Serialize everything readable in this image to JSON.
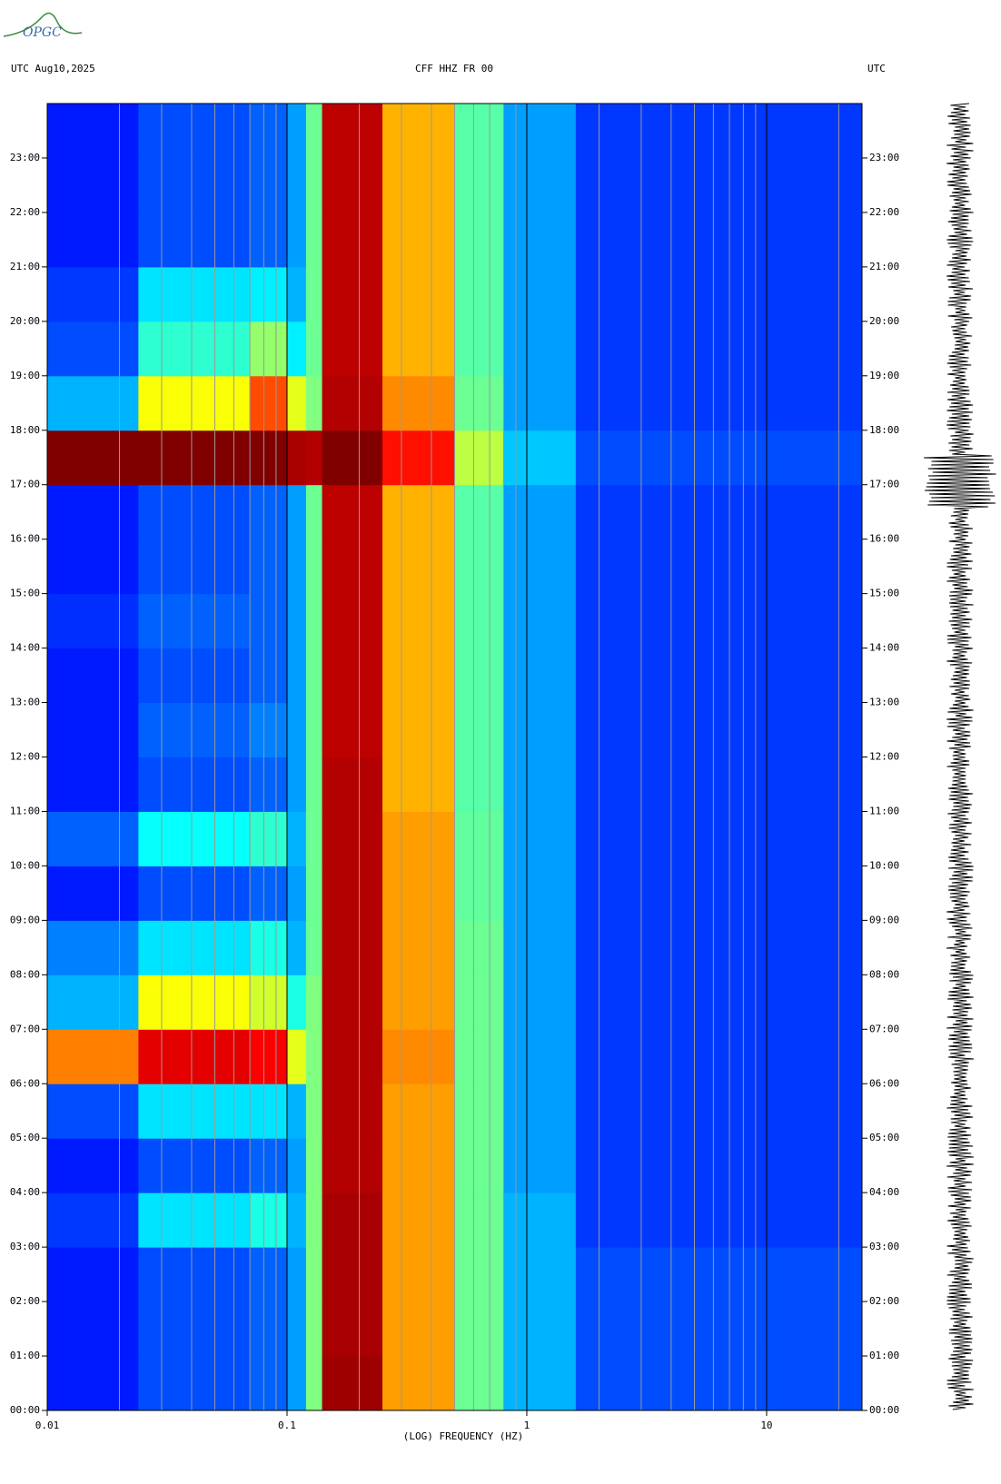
{
  "logo": "OPGC",
  "chart_data": {
    "type": "heatmap",
    "header_left": "UTC  Aug10,2025",
    "title": "CFF HHZ FR 00",
    "header_right": "UTC",
    "xlabel": "(LOG) FREQUENCY (HZ)",
    "xscale": "log",
    "xlim": [
      0.01,
      25
    ],
    "xticks": [
      0.01,
      0.1,
      1,
      10
    ],
    "x": [
      0.01,
      0.024,
      0.07,
      0.1,
      0.12,
      0.14,
      0.25,
      0.5,
      0.8,
      1.6,
      25
    ],
    "ylim": [
      0,
      24
    ],
    "yticks": [
      {
        "value": 0,
        "label": "00:00"
      },
      {
        "value": 1,
        "label": "01:00"
      },
      {
        "value": 2,
        "label": "02:00"
      },
      {
        "value": 3,
        "label": "03:00"
      },
      {
        "value": 4,
        "label": "04:00"
      },
      {
        "value": 5,
        "label": "05:00"
      },
      {
        "value": 6,
        "label": "06:00"
      },
      {
        "value": 7,
        "label": "07:00"
      },
      {
        "value": 8,
        "label": "08:00"
      },
      {
        "value": 9,
        "label": "09:00"
      },
      {
        "value": 10,
        "label": "10:00"
      },
      {
        "value": 11,
        "label": "11:00"
      },
      {
        "value": 12,
        "label": "12:00"
      },
      {
        "value": 13,
        "label": "13:00"
      },
      {
        "value": 14,
        "label": "14:00"
      },
      {
        "value": 15,
        "label": "15:00"
      },
      {
        "value": 16,
        "label": "16:00"
      },
      {
        "value": 17,
        "label": "17:00"
      },
      {
        "value": 18,
        "label": "18:00"
      },
      {
        "value": 19,
        "label": "19:00"
      },
      {
        "value": 20,
        "label": "20:00"
      },
      {
        "value": 21,
        "label": "21:00"
      },
      {
        "value": 22,
        "label": "22:00"
      },
      {
        "value": 23,
        "label": "23:00"
      }
    ],
    "y": [
      0,
      1,
      2,
      3,
      4,
      5,
      6,
      7,
      8,
      9,
      10,
      11,
      12,
      13,
      14,
      15,
      16,
      17,
      18,
      19,
      20,
      21,
      22,
      23,
      24
    ],
    "values": [
      [
        0.15,
        0.2,
        0.22,
        0.28,
        0.5,
        0.97,
        0.72,
        0.48,
        0.3,
        0.2
      ],
      [
        0.15,
        0.2,
        0.22,
        0.28,
        0.5,
        0.96,
        0.72,
        0.48,
        0.3,
        0.2
      ],
      [
        0.15,
        0.2,
        0.22,
        0.28,
        0.5,
        0.96,
        0.72,
        0.48,
        0.3,
        0.2
      ],
      [
        0.18,
        0.35,
        0.4,
        0.3,
        0.5,
        0.96,
        0.72,
        0.48,
        0.3,
        0.18
      ],
      [
        0.15,
        0.2,
        0.22,
        0.28,
        0.5,
        0.95,
        0.72,
        0.48,
        0.28,
        0.18
      ],
      [
        0.2,
        0.35,
        0.35,
        0.3,
        0.5,
        0.95,
        0.72,
        0.48,
        0.28,
        0.18
      ],
      [
        0.75,
        0.9,
        0.88,
        0.6,
        0.5,
        0.95,
        0.74,
        0.48,
        0.28,
        0.18
      ],
      [
        0.3,
        0.62,
        0.58,
        0.4,
        0.5,
        0.95,
        0.72,
        0.48,
        0.28,
        0.18
      ],
      [
        0.25,
        0.35,
        0.4,
        0.3,
        0.48,
        0.95,
        0.72,
        0.48,
        0.28,
        0.18
      ],
      [
        0.15,
        0.2,
        0.22,
        0.28,
        0.48,
        0.95,
        0.72,
        0.47,
        0.28,
        0.18
      ],
      [
        0.22,
        0.38,
        0.42,
        0.3,
        0.48,
        0.95,
        0.72,
        0.47,
        0.28,
        0.18
      ],
      [
        0.15,
        0.2,
        0.22,
        0.28,
        0.48,
        0.95,
        0.7,
        0.46,
        0.28,
        0.18
      ],
      [
        0.15,
        0.22,
        0.25,
        0.28,
        0.48,
        0.94,
        0.7,
        0.46,
        0.28,
        0.18
      ],
      [
        0.15,
        0.2,
        0.22,
        0.28,
        0.48,
        0.94,
        0.7,
        0.46,
        0.28,
        0.18
      ],
      [
        0.17,
        0.22,
        0.22,
        0.28,
        0.48,
        0.94,
        0.7,
        0.46,
        0.28,
        0.18
      ],
      [
        0.15,
        0.2,
        0.22,
        0.28,
        0.48,
        0.94,
        0.7,
        0.46,
        0.28,
        0.18
      ],
      [
        0.15,
        0.2,
        0.22,
        0.28,
        0.48,
        0.94,
        0.7,
        0.46,
        0.28,
        0.18
      ],
      [
        1,
        1,
        1,
        0.96,
        0.95,
        1,
        0.86,
        0.56,
        0.32,
        0.2
      ],
      [
        0.3,
        0.62,
        0.8,
        0.6,
        0.5,
        0.95,
        0.74,
        0.48,
        0.28,
        0.18
      ],
      [
        0.2,
        0.42,
        0.52,
        0.36,
        0.48,
        0.94,
        0.7,
        0.46,
        0.28,
        0.18
      ],
      [
        0.18,
        0.35,
        0.36,
        0.3,
        0.48,
        0.94,
        0.7,
        0.46,
        0.28,
        0.18
      ],
      [
        0.15,
        0.2,
        0.22,
        0.28,
        0.48,
        0.94,
        0.7,
        0.46,
        0.28,
        0.18
      ],
      [
        0.15,
        0.2,
        0.22,
        0.28,
        0.48,
        0.94,
        0.7,
        0.46,
        0.28,
        0.18
      ],
      [
        0.15,
        0.2,
        0.22,
        0.28,
        0.48,
        0.94,
        0.7,
        0.46,
        0.28,
        0.18
      ]
    ],
    "grid": true
  }
}
